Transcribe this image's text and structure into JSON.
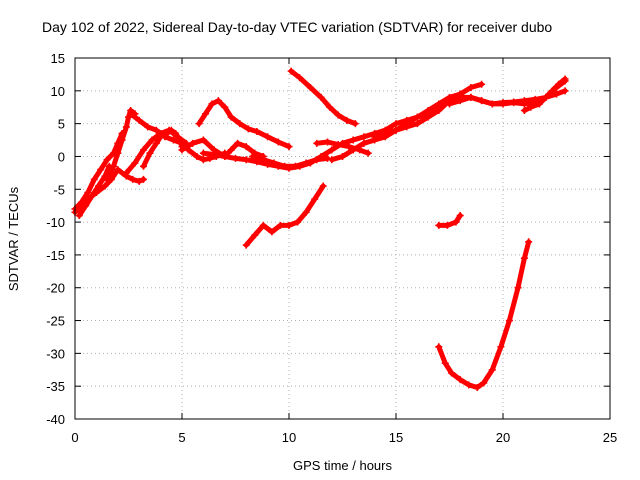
{
  "chart_data": {
    "type": "scatter",
    "title": "Day 102 of 2022, Sidereal Day-to-day VTEC variation (SDTVAR) for receiver dubo",
    "xlabel": "GPS time / hours",
    "ylabel": "SDTVAR / TECUs",
    "xlim": [
      0,
      25
    ],
    "ylim": [
      -40,
      15
    ],
    "xticks": [
      0,
      5,
      10,
      15,
      20,
      25
    ],
    "yticks": [
      -40,
      -35,
      -30,
      -25,
      -20,
      -15,
      -10,
      -5,
      0,
      5,
      10,
      15
    ],
    "grid": true,
    "legend": "none",
    "marker": "plus",
    "color": "#ff0000",
    "series": [
      {
        "x": [
          0.0,
          0.3,
          0.6,
          1.0,
          1.4,
          1.7,
          2.0,
          2.4,
          2.7,
          3.0,
          3.2
        ],
        "y": [
          -8.5,
          -7.5,
          -6.5,
          -5.5,
          -4.5,
          -3.5,
          -2.0,
          -3.0,
          -3.5,
          -3.8,
          -3.5
        ]
      },
      {
        "x": [
          0.0,
          0.3,
          0.6,
          0.9,
          1.2,
          1.5,
          1.8,
          2.0,
          2.2
        ],
        "y": [
          -8.0,
          -7.0,
          -5.5,
          -3.5,
          -2.0,
          -0.5,
          0.5,
          2.0,
          3.5
        ]
      },
      {
        "x": [
          0.2,
          0.5,
          0.8,
          1.1,
          1.4,
          1.6
        ],
        "y": [
          -9.0,
          -7.5,
          -6.0,
          -4.5,
          -3.0,
          -1.5
        ]
      },
      {
        "x": [
          1.5,
          1.8,
          2.0,
          2.2,
          2.4,
          2.5,
          2.6,
          2.8
        ],
        "y": [
          -3.5,
          -1.5,
          0.5,
          2.5,
          4.5,
          6.0,
          7.0,
          6.5
        ]
      },
      {
        "x": [
          2.6,
          3.0,
          3.4,
          3.8,
          4.2,
          4.6,
          5.0,
          5.3,
          5.7,
          6.0,
          6.3,
          6.6,
          7.0
        ],
        "y": [
          6.5,
          5.5,
          4.5,
          4.0,
          3.0,
          2.5,
          2.0,
          1.0,
          0.0,
          -0.5,
          -0.3,
          0.0,
          0.5
        ]
      },
      {
        "x": [
          3.2,
          3.5,
          3.8,
          4.0,
          4.3,
          4.5,
          4.7,
          4.9,
          5.0
        ],
        "y": [
          -1.5,
          0.5,
          2.0,
          3.0,
          3.5,
          4.0,
          3.5,
          2.5,
          1.5
        ]
      },
      {
        "x": [
          2.4,
          2.8,
          3.2,
          3.6,
          4.0,
          4.4,
          4.8,
          5.2
        ],
        "y": [
          -2.5,
          -1.0,
          1.0,
          2.5,
          3.5,
          4.0,
          3.0,
          2.0
        ]
      },
      {
        "x": [
          5.8,
          6.1,
          6.4,
          6.7,
          7.0,
          7.3,
          7.7,
          8.1,
          8.5,
          9.0,
          9.5,
          10.0
        ],
        "y": [
          5.0,
          6.5,
          8.0,
          8.5,
          7.5,
          6.0,
          5.0,
          4.2,
          3.8,
          3.0,
          2.2,
          1.5
        ]
      },
      {
        "x": [
          5.0,
          5.5,
          6.0,
          6.5,
          7.0,
          7.3,
          7.6,
          8.0,
          8.4,
          8.8
        ],
        "y": [
          1.0,
          2.0,
          2.5,
          1.0,
          0.0,
          1.0,
          2.0,
          1.5,
          0.5,
          0.0
        ]
      },
      {
        "x": [
          6.0,
          6.5,
          7.0,
          7.5,
          8.0,
          8.5,
          9.0,
          9.5,
          10.0,
          10.5,
          11.0,
          11.5,
          12.0,
          12.5,
          13.0,
          13.5,
          14.0,
          14.5,
          15.0,
          15.5,
          16.0,
          16.5,
          17.0,
          17.5,
          18.0,
          18.5,
          19.0,
          19.5,
          20.0,
          20.5,
          21.0,
          21.5,
          22.0,
          22.5,
          22.9
        ],
        "y": [
          0.5,
          0.3,
          0.0,
          -0.3,
          -0.5,
          -0.8,
          -1.2,
          -1.5,
          -1.8,
          -1.5,
          -1.0,
          0.0,
          1.0,
          2.0,
          2.5,
          3.0,
          3.5,
          4.0,
          5.0,
          5.5,
          6.0,
          6.5,
          7.5,
          8.5,
          9.0,
          9.0,
          8.5,
          8.0,
          8.2,
          8.3,
          8.5,
          8.7,
          9.0,
          9.5,
          10.0
        ]
      },
      {
        "x": [
          8.3,
          8.8,
          9.3,
          9.8,
          10.3,
          10.8,
          11.3,
          11.8
        ],
        "y": [
          0.0,
          -0.5,
          -1.0,
          -1.5,
          -1.5,
          -1.0,
          -0.5,
          -0.3
        ]
      },
      {
        "x": [
          10.1,
          10.5,
          11.0,
          11.5,
          11.9,
          12.3,
          12.7,
          13.1
        ],
        "y": [
          13.0,
          12.0,
          10.5,
          9.0,
          7.5,
          6.3,
          5.5,
          5.0
        ]
      },
      {
        "x": [
          11.3,
          11.8,
          12.3,
          12.8,
          13.3,
          13.7
        ],
        "y": [
          2.0,
          2.2,
          1.8,
          1.5,
          1.0,
          0.5
        ]
      },
      {
        "x": [
          12.0,
          12.5,
          13.0,
          13.5,
          14.0,
          14.5,
          15.0,
          15.5,
          16.0,
          16.5,
          17.0,
          17.5,
          18.0
        ],
        "y": [
          -0.5,
          0.0,
          1.0,
          2.0,
          2.5,
          3.0,
          4.0,
          5.0,
          6.0,
          7.0,
          8.0,
          9.0,
          9.5
        ]
      },
      {
        "x": [
          14.0,
          14.5,
          15.0,
          15.5,
          16.0,
          16.5,
          17.0,
          17.5,
          18.0,
          18.5,
          19.0
        ],
        "y": [
          3.0,
          3.5,
          4.0,
          4.5,
          5.0,
          6.0,
          7.0,
          8.5,
          9.5,
          10.5,
          11.0
        ]
      },
      {
        "x": [
          17.5,
          18.0,
          18.5,
          19.0,
          19.5,
          20.0,
          20.5,
          21.0,
          21.5,
          22.0,
          22.5,
          22.9
        ],
        "y": [
          8.0,
          8.5,
          9.0,
          8.5,
          8.0,
          8.0,
          8.2,
          8.0,
          8.2,
          9.0,
          10.5,
          11.5
        ]
      },
      {
        "x": [
          21.0,
          21.3,
          21.7,
          22.0,
          22.3,
          22.6,
          22.9
        ],
        "y": [
          7.0,
          7.5,
          8.0,
          9.0,
          10.0,
          11.0,
          11.8
        ]
      },
      {
        "x": [
          8.0,
          8.4,
          8.8,
          9.2,
          9.6,
          10.0,
          10.4,
          10.8,
          11.2,
          11.6
        ],
        "y": [
          -13.5,
          -12.0,
          -10.5,
          -11.5,
          -10.5,
          -10.5,
          -10.0,
          -8.5,
          -6.5,
          -4.5
        ]
      },
      {
        "x": [
          17.0,
          17.4,
          17.8,
          18.0
        ],
        "y": [
          -10.5,
          -10.5,
          -10.0,
          -9.0
        ]
      },
      {
        "x": [
          17.0,
          17.3,
          17.6,
          18.0,
          18.4,
          18.8,
          19.1,
          19.5,
          19.9,
          20.3,
          20.7,
          21.0,
          21.2
        ],
        "y": [
          -29.0,
          -31.5,
          -33.0,
          -34.0,
          -34.8,
          -35.2,
          -34.5,
          -32.5,
          -29.0,
          -25.0,
          -20.0,
          -15.5,
          -13.0
        ]
      }
    ]
  }
}
